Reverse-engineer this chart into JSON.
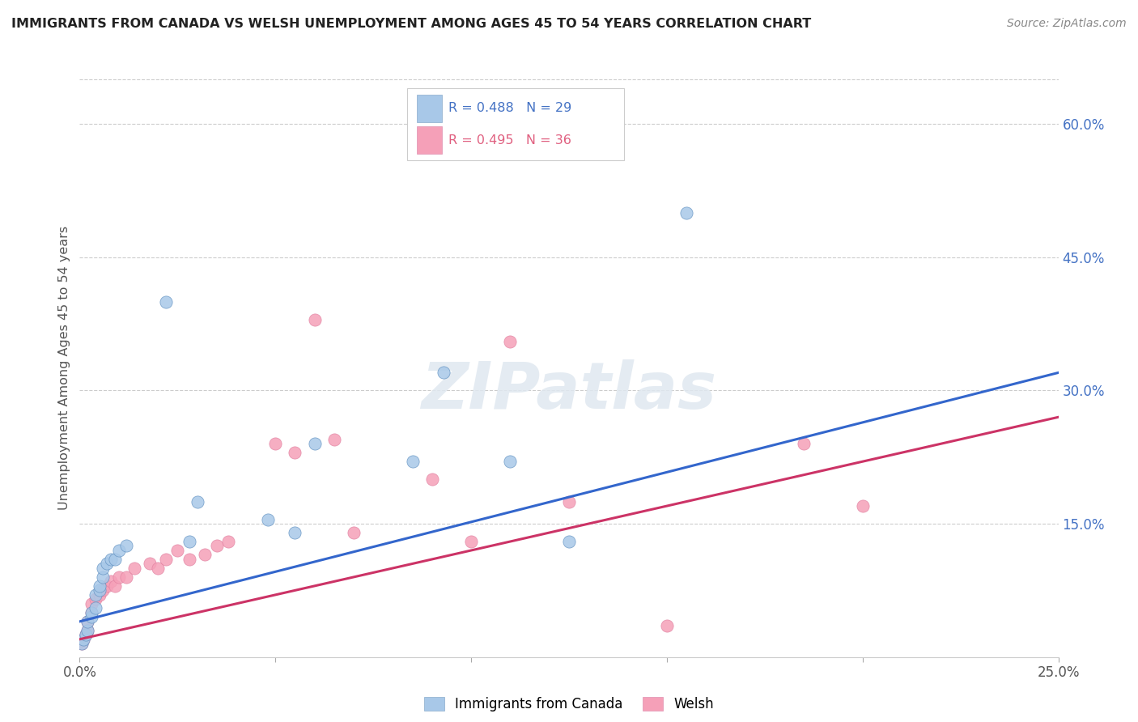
{
  "title": "IMMIGRANTS FROM CANADA VS WELSH UNEMPLOYMENT AMONG AGES 45 TO 54 YEARS CORRELATION CHART",
  "source": "Source: ZipAtlas.com",
  "ylabel": "Unemployment Among Ages 45 to 54 years",
  "xlim": [
    0.0,
    0.25
  ],
  "ylim": [
    0.0,
    0.65
  ],
  "right_yticks": [
    0.15,
    0.3,
    0.45,
    0.6
  ],
  "right_yticklabels": [
    "15.0%",
    "30.0%",
    "45.0%",
    "60.0%"
  ],
  "xticks": [
    0.0,
    0.05,
    0.1,
    0.15,
    0.2,
    0.25
  ],
  "xticklabels": [
    "0.0%",
    "",
    "",
    "",
    "",
    "25.0%"
  ],
  "legend_blue_r": "R = 0.488",
  "legend_blue_n": "N = 29",
  "legend_pink_r": "R = 0.495",
  "legend_pink_n": "N = 36",
  "blue_color": "#a8c8e8",
  "pink_color": "#f5a0b8",
  "blue_line_color": "#3366cc",
  "pink_line_color": "#cc3366",
  "blue_legend_color": "#4472c4",
  "pink_legend_color": "#e06080",
  "watermark": "ZIPatlas",
  "blue_x": [
    0.0005,
    0.001,
    0.0015,
    0.002,
    0.002,
    0.003,
    0.003,
    0.004,
    0.004,
    0.005,
    0.005,
    0.006,
    0.006,
    0.007,
    0.008,
    0.009,
    0.01,
    0.012,
    0.022,
    0.028,
    0.03,
    0.048,
    0.055,
    0.06,
    0.085,
    0.093,
    0.11,
    0.125,
    0.155
  ],
  "blue_y": [
    0.015,
    0.02,
    0.025,
    0.03,
    0.04,
    0.045,
    0.05,
    0.055,
    0.07,
    0.075,
    0.08,
    0.09,
    0.1,
    0.105,
    0.11,
    0.11,
    0.12,
    0.125,
    0.4,
    0.13,
    0.175,
    0.155,
    0.14,
    0.24,
    0.22,
    0.32,
    0.22,
    0.13,
    0.5
  ],
  "pink_x": [
    0.0005,
    0.001,
    0.0015,
    0.002,
    0.002,
    0.003,
    0.003,
    0.004,
    0.005,
    0.006,
    0.007,
    0.008,
    0.009,
    0.01,
    0.012,
    0.014,
    0.018,
    0.02,
    0.022,
    0.025,
    0.028,
    0.032,
    0.035,
    0.038,
    0.05,
    0.055,
    0.06,
    0.065,
    0.07,
    0.09,
    0.1,
    0.11,
    0.125,
    0.15,
    0.185,
    0.2
  ],
  "pink_y": [
    0.015,
    0.02,
    0.025,
    0.03,
    0.04,
    0.05,
    0.06,
    0.065,
    0.07,
    0.075,
    0.08,
    0.085,
    0.08,
    0.09,
    0.09,
    0.1,
    0.105,
    0.1,
    0.11,
    0.12,
    0.11,
    0.115,
    0.125,
    0.13,
    0.24,
    0.23,
    0.38,
    0.245,
    0.14,
    0.2,
    0.13,
    0.355,
    0.175,
    0.035,
    0.24,
    0.17
  ],
  "blue_trend_x0": 0.0,
  "blue_trend_y0": 0.04,
  "blue_trend_x1": 0.25,
  "blue_trend_y1": 0.32,
  "pink_trend_x0": 0.0,
  "pink_trend_y0": 0.02,
  "pink_trend_x1": 0.25,
  "pink_trend_y1": 0.27
}
